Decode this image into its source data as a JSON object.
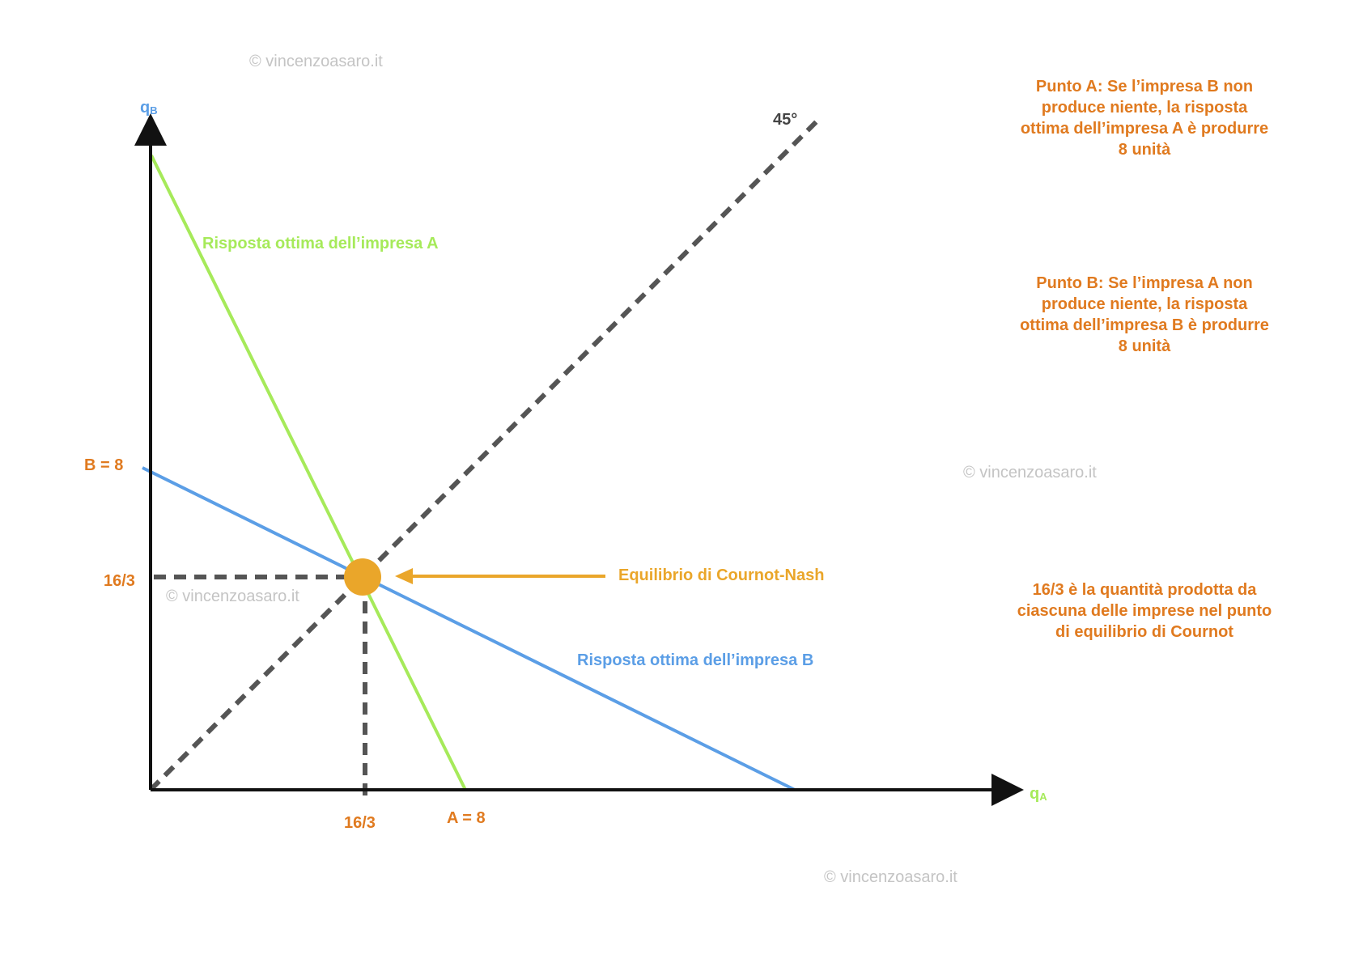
{
  "colors": {
    "axis": "#111111",
    "green": "#a6ea5a",
    "blue": "#5b9ee6",
    "orange": "#e07a1f",
    "gold": "#eaa62a",
    "dashed": "#555555",
    "watermark": "#c4c4c4"
  },
  "axes": {
    "y_label_main": "q",
    "y_label_sub": "B",
    "x_label_main": "q",
    "x_label_sub": "A"
  },
  "ticks": {
    "b8": "B = 8",
    "y_eq": "16/3",
    "x_eq": "16/3",
    "a8": "A = 8"
  },
  "labels": {
    "angle": "45°",
    "best_response_a": "Risposta ottima dell’impresa A",
    "best_response_b": "Risposta ottima dell’impresa B",
    "equilibrium": "Equilibrio di Cournot-Nash"
  },
  "notes": {
    "point_a": [
      "Punto A: Se l’impresa B non",
      "produce niente, la risposta",
      "ottima dell’impresa A è produrre",
      "8 unità"
    ],
    "point_b": [
      "Punto B: Se l’impresa A non",
      "produce niente, la risposta",
      "ottima dell’impresa B è produrre",
      "8 unità"
    ],
    "quantity": [
      "16/3 è la quantità prodotta da",
      "ciascuna delle imprese nel punto",
      "di equilibrio di Cournot"
    ]
  },
  "watermark": "© vincenzoasaro.it"
}
